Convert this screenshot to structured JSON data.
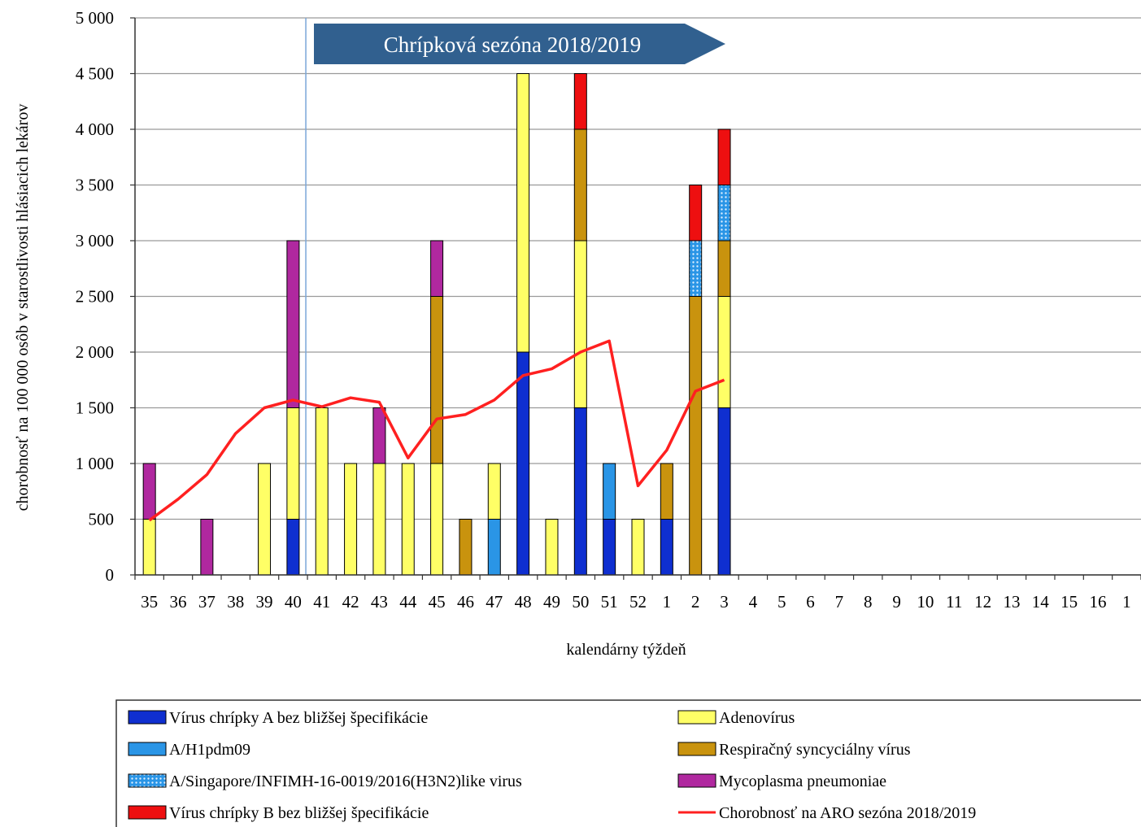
{
  "chart_data": {
    "type": "bar",
    "stacked": true,
    "title": "",
    "xlabel": "kalendárny týždeň",
    "ylabel": "chorobnosť na 100 000 osôb v starostlivosti hlásiacich lekárov",
    "ylim": [
      0,
      5000
    ],
    "yticks": [
      "0",
      "500",
      "1 000",
      "1 500",
      "2 000",
      "2 500",
      "3 000",
      "3 500",
      "4 000",
      "4 500",
      "5 000"
    ],
    "ytick_values": [
      0,
      500,
      1000,
      1500,
      2000,
      2500,
      3000,
      3500,
      4000,
      4500,
      5000
    ],
    "grid": true,
    "legend_position": "bottom",
    "annotation": "Chrípková sezóna 2018/2019",
    "categories": [
      "35",
      "36",
      "37",
      "38",
      "39",
      "40",
      "41",
      "42",
      "43",
      "44",
      "45",
      "46",
      "47",
      "48",
      "49",
      "50",
      "51",
      "52",
      "1",
      "2",
      "3",
      "4",
      "5",
      "6",
      "7",
      "8",
      "9",
      "10",
      "11",
      "12",
      "13",
      "14",
      "15",
      "16",
      "1"
    ],
    "series": [
      {
        "name": "Vírus chrípky A bez bližšej špecifikácie",
        "color": "#0f2fd0",
        "pattern": "solid",
        "values": [
          0,
          0,
          0,
          0,
          0,
          500,
          0,
          0,
          0,
          0,
          0,
          0,
          0,
          2000,
          0,
          1500,
          500,
          0,
          500,
          0,
          1500,
          0,
          0,
          0,
          0,
          0,
          0,
          0,
          0,
          0,
          0,
          0,
          0,
          0,
          0
        ]
      },
      {
        "name": "A/H1pdm09",
        "color": "#2a95e6",
        "pattern": "solid",
        "values": [
          0,
          0,
          0,
          0,
          0,
          0,
          0,
          0,
          0,
          0,
          0,
          0,
          500,
          0,
          0,
          0,
          500,
          0,
          0,
          0,
          0,
          0,
          0,
          0,
          0,
          0,
          0,
          0,
          0,
          0,
          0,
          0,
          0,
          0,
          0
        ]
      },
      {
        "name": "A/Singapore/INFIMH-16-0019/2016(H3N2)like virus",
        "color": "#2a95e6",
        "pattern": "dots",
        "values": [
          0,
          0,
          0,
          0,
          0,
          0,
          0,
          0,
          0,
          0,
          0,
          0,
          0,
          0,
          0,
          0,
          0,
          0,
          0,
          500,
          500,
          0,
          0,
          0,
          0,
          0,
          0,
          0,
          0,
          0,
          0,
          0,
          0,
          0,
          0
        ]
      },
      {
        "name": "Vírus chrípky B bez bližšej špecifikácie",
        "color": "#ee0f10",
        "pattern": "solid",
        "values": [
          0,
          0,
          0,
          0,
          0,
          0,
          0,
          0,
          0,
          0,
          0,
          0,
          0,
          0,
          0,
          500,
          0,
          0,
          0,
          500,
          500,
          0,
          0,
          0,
          0,
          0,
          0,
          0,
          0,
          0,
          0,
          0,
          0,
          0,
          0
        ]
      },
      {
        "name": "Adenovírus",
        "color": "#ffff66",
        "pattern": "solid",
        "values": [
          500,
          0,
          0,
          0,
          1000,
          1000,
          1500,
          1000,
          1000,
          1000,
          1000,
          0,
          500,
          2500,
          500,
          1500,
          0,
          500,
          0,
          0,
          1000,
          0,
          0,
          0,
          0,
          0,
          0,
          0,
          0,
          0,
          0,
          0,
          0,
          0,
          0
        ]
      },
      {
        "name": "Respiračný syncyciálny vírus",
        "color": "#c9930e",
        "pattern": "solid",
        "values": [
          0,
          0,
          0,
          0,
          0,
          0,
          0,
          0,
          0,
          0,
          1500,
          500,
          0,
          0,
          0,
          1000,
          0,
          0,
          500,
          2500,
          500,
          0,
          0,
          0,
          0,
          0,
          0,
          0,
          0,
          0,
          0,
          0,
          0,
          0,
          0
        ]
      },
      {
        "name": "Mycoplasma pneumoniae",
        "color": "#b0289f",
        "pattern": "solid",
        "values": [
          500,
          0,
          500,
          0,
          0,
          1500,
          0,
          0,
          500,
          0,
          500,
          0,
          0,
          0,
          0,
          0,
          0,
          0,
          0,
          0,
          0,
          0,
          0,
          0,
          0,
          0,
          0,
          0,
          0,
          0,
          0,
          0,
          0,
          0,
          0
        ]
      }
    ],
    "stack_order": [
      [
        "Vírus chrípky A bez bližšej špecifikácie",
        "A/H1pdm09",
        "Adenovírus",
        "Respiračný syncyciálny vírus",
        "A/Singapore/INFIMH-16-0019/2016(H3N2)like virus",
        "Mycoplasma pneumoniae",
        "Vírus chrípky B bez bližšej špecifikácie"
      ]
    ],
    "line": {
      "name": "Chorobnosť na ARO sezóna 2018/2019",
      "color": "#ff2020",
      "values": [
        490,
        680,
        900,
        1270,
        1500,
        1570,
        1510,
        1590,
        1550,
        1050,
        1400,
        1440,
        1570,
        1790,
        1850,
        2000,
        2100,
        800,
        1120,
        1650,
        1750
      ]
    }
  }
}
